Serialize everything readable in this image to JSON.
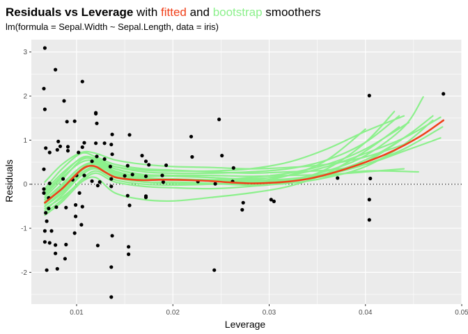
{
  "chart_data": {
    "type": "scatter",
    "title": {
      "bold": "Residuals vs Leverage",
      "part_with": " with ",
      "fitted_word": "fitted",
      "part_and": " and ",
      "bootstrap_word": "bootstrap",
      "part_end": " smoothers"
    },
    "subtitle": "lm(formula = Sepal.Width ~ Sepal.Length, data = iris)",
    "xlabel": "Leverage",
    "ylabel": "Residuals",
    "xlim": [
      0.0053,
      0.05
    ],
    "ylim": [
      -2.72,
      3.28
    ],
    "x_ticks": [
      0.01,
      0.02,
      0.03,
      0.04,
      0.05
    ],
    "x_tick_labels": [
      "0.01",
      "0.02",
      "0.03",
      "0.04",
      "0.05"
    ],
    "y_ticks": [
      -2,
      -1,
      0,
      1,
      2,
      3
    ],
    "y_tick_labels": [
      "-2",
      "-1",
      "0",
      "1",
      "2",
      "3"
    ],
    "reference_line_y": 0,
    "colors": {
      "panel": "#ebebeb",
      "grid": "#ffffff",
      "points": "#000000",
      "fitted": "#f0401a",
      "bootstrap": "#8cf08c",
      "title_fitted": "#f0401a",
      "title_bootstrap": "#8cf08c"
    },
    "points": [
      [
        0.0067,
        3.09
      ],
      [
        0.0066,
        2.17
      ],
      [
        0.0067,
        1.7
      ],
      [
        0.0078,
        2.6
      ],
      [
        0.0087,
        1.89
      ],
      [
        0.0106,
        2.33
      ],
      [
        0.012,
        1.62
      ],
      [
        0.012,
        1.6
      ],
      [
        0.0121,
        1.38
      ],
      [
        0.0137,
        1.13
      ],
      [
        0.0155,
        1.12
      ],
      [
        0.0098,
        1.43
      ],
      [
        0.009,
        1.42
      ],
      [
        0.0081,
        0.97
      ],
      [
        0.0091,
        0.85
      ],
      [
        0.0091,
        0.76
      ],
      [
        0.0083,
        0.86
      ],
      [
        0.008,
        0.78
      ],
      [
        0.0068,
        0.82
      ],
      [
        0.0072,
        0.72
      ],
      [
        0.0066,
        0.34
      ],
      [
        0.0102,
        0.72
      ],
      [
        0.0106,
        0.84
      ],
      [
        0.0108,
        0.94
      ],
      [
        0.012,
        0.93
      ],
      [
        0.0129,
        0.93
      ],
      [
        0.0136,
        0.9
      ],
      [
        0.0137,
        0.68
      ],
      [
        0.0129,
        0.57
      ],
      [
        0.0121,
        0.63
      ],
      [
        0.0116,
        0.52
      ],
      [
        0.0135,
        0.4
      ],
      [
        0.0153,
        0.42
      ],
      [
        0.0168,
        0.65
      ],
      [
        0.0172,
        0.52
      ],
      [
        0.0175,
        0.44
      ],
      [
        0.0193,
        0.43
      ],
      [
        0.0219,
        1.08
      ],
      [
        0.022,
        0.62
      ],
      [
        0.0248,
        1.47
      ],
      [
        0.0251,
        0.65
      ],
      [
        0.0263,
        0.37
      ],
      [
        0.01,
        0.2
      ],
      [
        0.0096,
        0.1
      ],
      [
        0.0108,
        0.2
      ],
      [
        0.0116,
        0.07
      ],
      [
        0.0124,
        0.05
      ],
      [
        0.0136,
        0.12
      ],
      [
        0.015,
        0.19
      ],
      [
        0.0158,
        0.22
      ],
      [
        0.0172,
        0.18
      ],
      [
        0.0189,
        0.2
      ],
      [
        0.019,
        0.05
      ],
      [
        0.0226,
        0.06
      ],
      [
        0.0244,
        0.01
      ],
      [
        0.0262,
        0.06
      ],
      [
        0.0086,
        0.12
      ],
      [
        0.0072,
        0.02
      ],
      [
        0.0066,
        -0.11
      ],
      [
        0.0066,
        -0.2
      ],
      [
        0.0071,
        -0.31
      ],
      [
        0.0071,
        -0.55
      ],
      [
        0.0068,
        -0.65
      ],
      [
        0.0069,
        -0.84
      ],
      [
        0.0067,
        -1.06
      ],
      [
        0.0067,
        -1.31
      ],
      [
        0.0074,
        -1.06
      ],
      [
        0.0072,
        -1.33
      ],
      [
        0.0078,
        -1.38
      ],
      [
        0.0078,
        -1.57
      ],
      [
        0.008,
        -1.92
      ],
      [
        0.0069,
        -1.95
      ],
      [
        0.0079,
        -0.52
      ],
      [
        0.0089,
        -0.53
      ],
      [
        0.0089,
        -1.37
      ],
      [
        0.0088,
        -1.69
      ],
      [
        0.0099,
        -0.47
      ],
      [
        0.0099,
        -0.73
      ],
      [
        0.0098,
        -1.11
      ],
      [
        0.0103,
        -0.2
      ],
      [
        0.0105,
        -0.92
      ],
      [
        0.0106,
        -0.51
      ],
      [
        0.0122,
        -0.03
      ],
      [
        0.0122,
        -1.39
      ],
      [
        0.0136,
        -0.05
      ],
      [
        0.0137,
        -1.17
      ],
      [
        0.0136,
        -1.88
      ],
      [
        0.0136,
        -2.56
      ],
      [
        0.0153,
        -0.26
      ],
      [
        0.0155,
        -0.48
      ],
      [
        0.0154,
        -1.42
      ],
      [
        0.0154,
        -1.59
      ],
      [
        0.0172,
        -0.27
      ],
      [
        0.0172,
        -0.3
      ],
      [
        0.0243,
        -1.95
      ],
      [
        0.0272,
        -0.58
      ],
      [
        0.0273,
        -0.42
      ],
      [
        0.0302,
        -0.35
      ],
      [
        0.0305,
        -0.39
      ],
      [
        0.0371,
        0.14
      ],
      [
        0.0404,
        2.01
      ],
      [
        0.0405,
        0.13
      ],
      [
        0.0404,
        -0.35
      ],
      [
        0.0404,
        -0.81
      ],
      [
        0.0481,
        2.05
      ]
    ],
    "fitted_series": {
      "x": [
        0.0067,
        0.0075,
        0.0085,
        0.0095,
        0.0105,
        0.0112,
        0.012,
        0.013,
        0.014,
        0.0155,
        0.017,
        0.0185,
        0.02,
        0.022,
        0.024,
        0.026,
        0.028,
        0.03,
        0.032,
        0.034,
        0.036,
        0.038,
        0.04,
        0.042,
        0.044,
        0.046,
        0.0481
      ],
      "y": [
        -0.42,
        -0.28,
        -0.1,
        0.12,
        0.33,
        0.41,
        0.4,
        0.27,
        0.16,
        0.11,
        0.09,
        0.1,
        0.1,
        0.09,
        0.07,
        0.04,
        0.02,
        0.03,
        0.06,
        0.12,
        0.22,
        0.35,
        0.5,
        0.67,
        0.88,
        1.13,
        1.45
      ]
    },
    "bootstrap_series": [
      {
        "x": [
          0.0067,
          0.0085,
          0.0105,
          0.012,
          0.014,
          0.017,
          0.02,
          0.024,
          0.028,
          0.032,
          0.036,
          0.04,
          0.044,
          0.046
        ],
        "y": [
          -0.5,
          -0.15,
          0.3,
          0.45,
          0.22,
          0.1,
          0.12,
          0.08,
          0.05,
          0.1,
          0.3,
          0.65,
          1.3,
          1.98
        ]
      },
      {
        "x": [
          0.0067,
          0.0085,
          0.0105,
          0.012,
          0.014,
          0.017,
          0.02,
          0.024,
          0.028,
          0.032,
          0.036,
          0.04,
          0.044,
          0.0478
        ],
        "y": [
          -0.3,
          0.1,
          0.55,
          0.55,
          0.35,
          0.2,
          0.18,
          0.15,
          0.12,
          0.2,
          0.4,
          0.7,
          1.05,
          1.52
        ]
      },
      {
        "x": [
          0.0067,
          0.0085,
          0.0105,
          0.012,
          0.014,
          0.017,
          0.02,
          0.024,
          0.028,
          0.032,
          0.036,
          0.04,
          0.044,
          0.047
        ],
        "y": [
          -0.6,
          -0.25,
          0.2,
          0.35,
          0.15,
          0.05,
          0.05,
          0.02,
          -0.02,
          0.02,
          0.15,
          0.4,
          0.9,
          1.45
        ]
      },
      {
        "x": [
          0.0067,
          0.0085,
          0.0105,
          0.012,
          0.014,
          0.017,
          0.02,
          0.024,
          0.028,
          0.032,
          0.036,
          0.04,
          0.044,
          0.0478
        ],
        "y": [
          -0.1,
          0.35,
          0.7,
          0.62,
          0.45,
          0.35,
          0.32,
          0.28,
          0.25,
          0.28,
          0.32,
          0.45,
          0.75,
          1.05
        ]
      },
      {
        "x": [
          0.0067,
          0.0085,
          0.0105,
          0.012,
          0.014,
          0.017,
          0.02,
          0.024,
          0.028,
          0.032,
          0.036,
          0.04,
          0.043
        ],
        "y": [
          -0.7,
          -0.4,
          0.05,
          0.25,
          0.05,
          -0.05,
          -0.08,
          -0.1,
          -0.05,
          0.05,
          0.35,
          0.95,
          1.65
        ]
      },
      {
        "x": [
          0.0067,
          0.0085,
          0.0105,
          0.012,
          0.014,
          0.017,
          0.02,
          0.024,
          0.028,
          0.032,
          0.036,
          0.04,
          0.044
        ],
        "y": [
          0.05,
          0.45,
          0.72,
          0.7,
          0.55,
          0.45,
          0.4,
          0.38,
          0.35,
          0.38,
          0.45,
          0.62,
          0.9
        ]
      },
      {
        "x": [
          0.0067,
          0.0085,
          0.0105,
          0.012,
          0.014,
          0.017,
          0.02,
          0.024,
          0.028,
          0.032,
          0.036,
          0.04,
          0.0455
        ],
        "y": [
          -0.35,
          0.0,
          0.4,
          0.48,
          0.28,
          0.15,
          0.12,
          0.1,
          0.08,
          0.1,
          0.18,
          0.3,
          0.28
        ]
      },
      {
        "x": [
          0.0067,
          0.0085,
          0.0105,
          0.012,
          0.014,
          0.017,
          0.02,
          0.024,
          0.028,
          0.032,
          0.036,
          0.04,
          0.0435
        ],
        "y": [
          -0.55,
          -0.3,
          0.05,
          0.15,
          -0.2,
          -0.35,
          -0.38,
          -0.3,
          -0.2,
          -0.05,
          0.25,
          0.75,
          1.3
        ]
      },
      {
        "x": [
          0.0067,
          0.0085,
          0.0105,
          0.012,
          0.014,
          0.017,
          0.02,
          0.024,
          0.028,
          0.032,
          0.036,
          0.04,
          0.0435
        ],
        "y": [
          -0.2,
          0.2,
          0.6,
          0.58,
          0.4,
          0.28,
          0.25,
          0.25,
          0.28,
          0.35,
          0.55,
          0.95,
          1.55
        ]
      },
      {
        "x": [
          0.0067,
          0.0085,
          0.0105,
          0.012,
          0.014,
          0.017,
          0.02,
          0.024,
          0.028,
          0.032,
          0.036,
          0.04,
          0.045
        ],
        "y": [
          -0.4,
          -0.05,
          0.35,
          0.5,
          0.3,
          0.15,
          0.1,
          0.08,
          0.06,
          0.1,
          0.25,
          0.5,
          1.2
        ]
      },
      {
        "x": [
          0.0067,
          0.0085,
          0.0105,
          0.012,
          0.014,
          0.017,
          0.02,
          0.024,
          0.028,
          0.032,
          0.036,
          0.04,
          0.044
        ],
        "y": [
          -0.45,
          -0.1,
          0.25,
          0.4,
          0.25,
          0.18,
          0.2,
          0.2,
          0.18,
          0.2,
          0.22,
          0.28,
          0.35
        ]
      },
      {
        "x": [
          0.0067,
          0.0085,
          0.0105,
          0.012,
          0.014,
          0.017,
          0.02,
          0.024,
          0.028,
          0.032,
          0.036,
          0.04,
          0.044,
          0.047
        ],
        "y": [
          -0.25,
          0.15,
          0.5,
          0.52,
          0.35,
          0.22,
          0.2,
          0.15,
          0.1,
          0.12,
          0.25,
          0.55,
          1.05,
          1.55
        ]
      },
      {
        "x": [
          0.0067,
          0.0085,
          0.0105,
          0.012,
          0.014,
          0.017,
          0.02,
          0.024,
          0.028,
          0.032,
          0.036,
          0.04,
          0.044,
          0.048
        ],
        "y": [
          -0.5,
          -0.2,
          0.25,
          0.38,
          0.18,
          0.05,
          0.02,
          0.0,
          0.02,
          0.08,
          0.22,
          0.45,
          0.8,
          1.3
        ]
      },
      {
        "x": [
          0.0067,
          0.0085,
          0.0105,
          0.012,
          0.014,
          0.017,
          0.02,
          0.024,
          0.028,
          0.032,
          0.036,
          0.04,
          0.044
        ],
        "y": [
          -0.15,
          0.25,
          0.58,
          0.55,
          0.4,
          0.32,
          0.3,
          0.3,
          0.35,
          0.5,
          0.8,
          1.2,
          1.55
        ]
      },
      {
        "x": [
          0.0067,
          0.0085,
          0.0105,
          0.012,
          0.014,
          0.017,
          0.02,
          0.024,
          0.028,
          0.032,
          0.036,
          0.04,
          0.0445
        ],
        "y": [
          -0.35,
          0.0,
          0.4,
          0.45,
          0.25,
          0.12,
          0.1,
          0.1,
          0.15,
          0.25,
          0.45,
          0.8,
          1.4
        ]
      },
      {
        "x": [
          0.0067,
          0.0085,
          0.0105,
          0.012,
          0.014,
          0.017,
          0.02,
          0.024,
          0.028,
          0.032,
          0.036,
          0.04
        ],
        "y": [
          -0.65,
          -0.35,
          0.1,
          0.3,
          0.1,
          0.0,
          -0.02,
          0.0,
          0.05,
          0.2,
          0.55,
          1.25
        ]
      }
    ]
  }
}
